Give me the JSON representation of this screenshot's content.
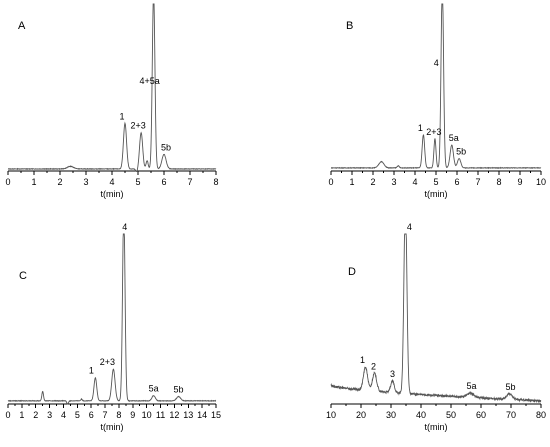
{
  "chart_data": [
    {
      "type": "line",
      "panel": "A",
      "xlabel": "t(min)",
      "xlim": [
        0,
        8
      ],
      "xticks": [
        0,
        1,
        2,
        3,
        4,
        5,
        6,
        7,
        8
      ],
      "baseline": 2,
      "ymax": 100,
      "noise": 0.25,
      "peaks": [
        {
          "label": "1",
          "x": 4.5,
          "height": 44,
          "width": 0.06
        },
        {
          "label": "2+3",
          "x": 5.12,
          "height": 35,
          "width": 0.06
        },
        {
          "label": "4+5a",
          "x": 5.6,
          "height": 170,
          "width": 0.05
        },
        {
          "label": "5b",
          "x": 6.0,
          "height": 14,
          "width": 0.08
        }
      ],
      "extra": [
        {
          "x": 2.4,
          "height": 2.5,
          "width": 0.12
        },
        {
          "x": 4.95,
          "height": -3,
          "width": 0.04
        },
        {
          "x": 5.35,
          "height": 8,
          "width": 0.04
        }
      ]
    },
    {
      "type": "line",
      "panel": "B",
      "xlabel": "t(min)",
      "xlim": [
        0,
        10
      ],
      "xticks": [
        0,
        1,
        2,
        3,
        4,
        5,
        6,
        7,
        8,
        9,
        10
      ],
      "baseline": 3,
      "ymax": 100,
      "noise": 0.25,
      "peaks": [
        {
          "label": "1",
          "x": 4.4,
          "height": 32,
          "width": 0.06
        },
        {
          "label": "2+3",
          "x": 4.95,
          "height": 28,
          "width": 0.05
        },
        {
          "label": "4",
          "x": 5.3,
          "height": 175,
          "width": 0.06
        },
        {
          "label": "5a",
          "x": 5.75,
          "height": 22,
          "width": 0.08
        },
        {
          "label": "5b",
          "x": 6.1,
          "height": 9,
          "width": 0.08
        }
      ],
      "extra": [
        {
          "x": 2.4,
          "height": 6,
          "width": 0.12
        },
        {
          "x": 3.2,
          "height": 2,
          "width": 0.05
        }
      ]
    },
    {
      "type": "line",
      "panel": "C",
      "xlabel": "t(min)",
      "xlim": [
        0,
        15
      ],
      "xticks": [
        0,
        1,
        2,
        3,
        4,
        5,
        6,
        7,
        8,
        9,
        10,
        11,
        12,
        13,
        14,
        15
      ],
      "baseline": 3,
      "ymax": 100,
      "noise": 0.25,
      "peaks": [
        {
          "label": "1",
          "x": 6.3,
          "height": 22,
          "width": 0.1
        },
        {
          "label": "2+3",
          "x": 7.6,
          "height": 30,
          "width": 0.12
        },
        {
          "label": "4",
          "x": 8.35,
          "height": 180,
          "width": 0.09
        },
        {
          "label": "5a",
          "x": 10.5,
          "height": 5,
          "width": 0.12
        },
        {
          "label": "5b",
          "x": 12.3,
          "height": 4,
          "width": 0.15
        }
      ],
      "extra": [
        {
          "x": 2.5,
          "height": 9,
          "width": 0.06
        },
        {
          "x": 4.3,
          "height": -3,
          "width": 0.06
        },
        {
          "x": 5.3,
          "height": 1.5,
          "width": 0.06
        }
      ]
    },
    {
      "type": "line",
      "panel": "D",
      "xlabel": "t(min)",
      "xlim": [
        10,
        80
      ],
      "xticks": [
        10,
        20,
        30,
        40,
        50,
        60,
        70,
        80
      ],
      "baseline_start": 18,
      "baseline_end": 3,
      "ymax": 100,
      "noise": 1.0,
      "peaks": [
        {
          "label": "1",
          "x": 21.5,
          "height": 22,
          "width": 0.7
        },
        {
          "label": "2",
          "x": 24.5,
          "height": 17,
          "width": 0.7
        },
        {
          "label": "3",
          "x": 30.5,
          "height": 11,
          "width": 0.6
        },
        {
          "label": "4",
          "x": 34.8,
          "height": 180,
          "width": 0.5
        },
        {
          "label": "5a",
          "x": 56.5,
          "height": 4,
          "width": 1.2
        },
        {
          "label": "5b",
          "x": 69.5,
          "height": 5,
          "width": 1.0
        }
      ],
      "extra": []
    }
  ]
}
